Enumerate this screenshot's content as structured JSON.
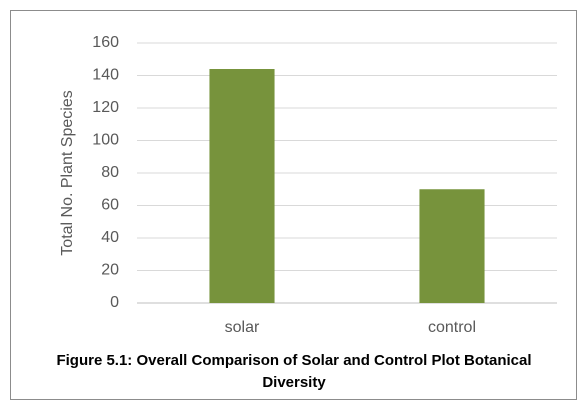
{
  "chart_data": {
    "type": "bar",
    "caption": "Figure 5.1: Overall Comparison of Solar and Control Plot Botanical Diversity",
    "y_label": "Total No. Plant Species",
    "categories": [
      "solar",
      "control"
    ],
    "values": [
      144,
      70
    ],
    "color": "#77933c",
    "ylim": [
      0,
      160
    ],
    "yticks": [
      0,
      20,
      40,
      60,
      80,
      100,
      120,
      140,
      160
    ],
    "grid": true
  }
}
